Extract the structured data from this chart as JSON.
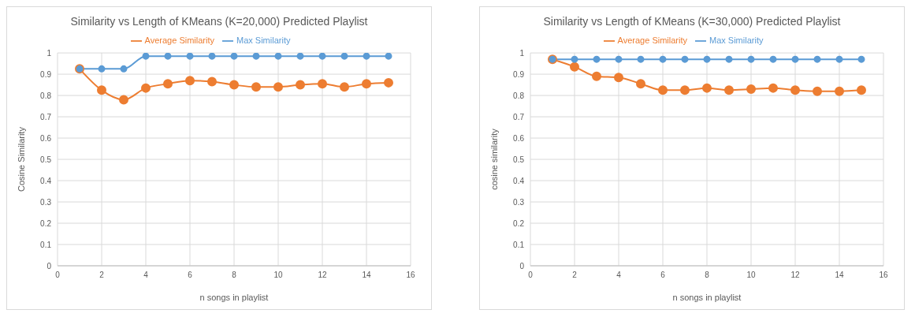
{
  "chart_data": [
    {
      "type": "line",
      "title": "Similarity vs Length of KMeans (K=20,000) Predicted Playlist",
      "xlabel": "n songs in playlist",
      "ylabel": "Cosine Similarity",
      "x": [
        1,
        2,
        3,
        4,
        5,
        6,
        7,
        8,
        9,
        10,
        11,
        12,
        13,
        14,
        15
      ],
      "xlim": [
        0,
        16
      ],
      "xticks": [
        0,
        2,
        4,
        6,
        8,
        10,
        12,
        14,
        16
      ],
      "ylim": [
        0,
        1
      ],
      "yticks": [
        0,
        0.1,
        0.2,
        0.3,
        0.4,
        0.5,
        0.6,
        0.7,
        0.8,
        0.9,
        1
      ],
      "grid": true,
      "legend": "top",
      "marker": "circle",
      "series": [
        {
          "name": "Average Similarity",
          "color": "#ed7d31",
          "values": [
            0.925,
            0.825,
            0.78,
            0.835,
            0.855,
            0.87,
            0.865,
            0.85,
            0.84,
            0.84,
            0.85,
            0.855,
            0.84,
            0.855,
            0.86
          ]
        },
        {
          "name": "Max Similarity",
          "color": "#5b9bd5",
          "values": [
            0.925,
            0.925,
            0.925,
            0.985,
            0.985,
            0.985,
            0.985,
            0.985,
            0.985,
            0.985,
            0.985,
            0.985,
            0.985,
            0.985,
            0.985
          ]
        }
      ]
    },
    {
      "type": "line",
      "title": "Similarity vs Length of KMeans (K=30,000) Predicted Playlist",
      "xlabel": "n songs in playlist",
      "ylabel": "cosine similarity",
      "x": [
        1,
        2,
        3,
        4,
        5,
        6,
        7,
        8,
        9,
        10,
        11,
        12,
        13,
        14,
        15
      ],
      "xlim": [
        0,
        16
      ],
      "xticks": [
        0,
        2,
        4,
        6,
        8,
        10,
        12,
        14,
        16
      ],
      "ylim": [
        0,
        1
      ],
      "yticks": [
        0,
        0.1,
        0.2,
        0.3,
        0.4,
        0.5,
        0.6,
        0.7,
        0.8,
        0.9,
        1
      ],
      "grid": true,
      "legend": "top",
      "marker": "circle",
      "series": [
        {
          "name": "Average Similarity",
          "color": "#ed7d31",
          "values": [
            0.97,
            0.935,
            0.89,
            0.885,
            0.855,
            0.825,
            0.825,
            0.835,
            0.825,
            0.83,
            0.835,
            0.825,
            0.82,
            0.82,
            0.825
          ]
        },
        {
          "name": "Max Similarity",
          "color": "#5b9bd5",
          "values": [
            0.97,
            0.97,
            0.97,
            0.97,
            0.97,
            0.97,
            0.97,
            0.97,
            0.97,
            0.97,
            0.97,
            0.97,
            0.97,
            0.97,
            0.97
          ]
        }
      ]
    }
  ]
}
